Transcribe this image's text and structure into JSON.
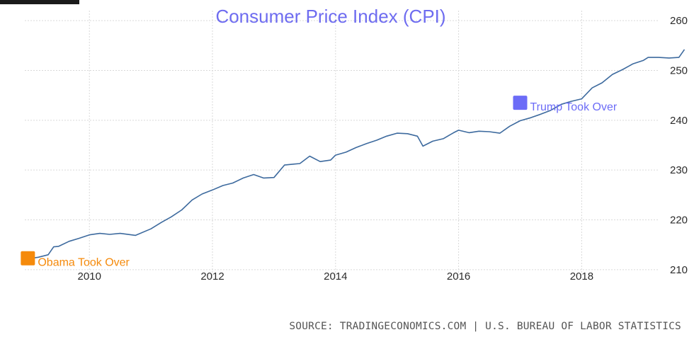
{
  "chart_data": {
    "type": "line",
    "title": "Consumer Price Index (CPI)",
    "xlabel": "",
    "ylabel": "",
    "xlim": [
      2008.95,
      2019.25
    ],
    "ylim": [
      208,
      262
    ],
    "x_ticks": [
      {
        "value": 2010,
        "label": "2010"
      },
      {
        "value": 2012,
        "label": "2012"
      },
      {
        "value": 2014,
        "label": "2014"
      },
      {
        "value": 2016,
        "label": "2016"
      },
      {
        "value": 2018,
        "label": "2018"
      }
    ],
    "y_ticks": [
      {
        "value": 210,
        "label": "210"
      },
      {
        "value": 220,
        "label": "220"
      },
      {
        "value": 230,
        "label": "230"
      },
      {
        "value": 240,
        "label": "240"
      },
      {
        "value": 250,
        "label": "250"
      },
      {
        "value": 260,
        "label": "260"
      }
    ],
    "y_axis_position": "right",
    "grid": true,
    "line_color": "#3d6a9e",
    "series": [
      {
        "name": "",
        "points": [
          [
            2009.0,
            212.2
          ],
          [
            2009.17,
            212.5
          ],
          [
            2009.33,
            213.0
          ],
          [
            2009.42,
            214.6
          ],
          [
            2009.5,
            214.7
          ],
          [
            2009.67,
            215.7
          ],
          [
            2009.83,
            216.3
          ],
          [
            2010.0,
            217.0
          ],
          [
            2010.17,
            217.3
          ],
          [
            2010.33,
            217.1
          ],
          [
            2010.5,
            217.3
          ],
          [
            2010.75,
            216.9
          ],
          [
            2011.0,
            218.2
          ],
          [
            2011.17,
            219.5
          ],
          [
            2011.33,
            220.6
          ],
          [
            2011.5,
            222.0
          ],
          [
            2011.67,
            224.0
          ],
          [
            2011.83,
            225.2
          ],
          [
            2012.0,
            226.0
          ],
          [
            2012.17,
            226.9
          ],
          [
            2012.33,
            227.4
          ],
          [
            2012.5,
            228.4
          ],
          [
            2012.67,
            229.1
          ],
          [
            2012.83,
            228.4
          ],
          [
            2013.0,
            228.5
          ],
          [
            2013.17,
            231.0
          ],
          [
            2013.33,
            231.2
          ],
          [
            2013.42,
            231.3
          ],
          [
            2013.58,
            232.8
          ],
          [
            2013.75,
            231.7
          ],
          [
            2013.92,
            232.0
          ],
          [
            2014.0,
            233.0
          ],
          [
            2014.17,
            233.6
          ],
          [
            2014.33,
            234.5
          ],
          [
            2014.5,
            235.3
          ],
          [
            2014.67,
            236.0
          ],
          [
            2014.83,
            236.8
          ],
          [
            2015.0,
            237.4
          ],
          [
            2015.17,
            237.3
          ],
          [
            2015.33,
            236.8
          ],
          [
            2015.42,
            234.8
          ],
          [
            2015.58,
            235.8
          ],
          [
            2015.75,
            236.3
          ],
          [
            2015.92,
            237.5
          ],
          [
            2016.0,
            238.0
          ],
          [
            2016.17,
            237.5
          ],
          [
            2016.33,
            237.8
          ],
          [
            2016.5,
            237.7
          ],
          [
            2016.67,
            237.4
          ],
          [
            2016.83,
            238.8
          ],
          [
            2017.0,
            239.9
          ],
          [
            2017.17,
            240.5
          ],
          [
            2017.33,
            241.2
          ],
          [
            2017.5,
            242.0
          ],
          [
            2017.67,
            243.2
          ],
          [
            2017.83,
            243.8
          ],
          [
            2018.0,
            244.3
          ],
          [
            2018.17,
            246.5
          ],
          [
            2018.33,
            247.5
          ],
          [
            2018.5,
            249.2
          ],
          [
            2018.67,
            250.2
          ],
          [
            2018.83,
            251.3
          ],
          [
            2019.0,
            252.0
          ],
          [
            2019.08,
            252.6
          ],
          [
            2019.25,
            252.6
          ],
          [
            2019.42,
            252.5
          ],
          [
            2019.58,
            252.6
          ],
          [
            2019.67,
            254.2
          ]
        ]
      }
    ],
    "annotations": [
      {
        "text": "Obama Took Over",
        "x": 2009.0,
        "y": 212.3,
        "color": "#f58a0b"
      },
      {
        "text": "Trump Took Over",
        "x": 2017.0,
        "y": 243.5,
        "color": "#6c6cf7"
      }
    ],
    "source": "SOURCE: TRADINGECONOMICS.COM | U.S. BUREAU OF LABOR STATISTICS"
  }
}
